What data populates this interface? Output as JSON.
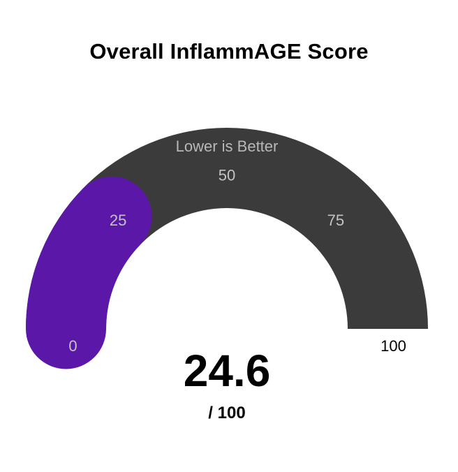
{
  "chart_data": {
    "type": "gauge",
    "title": "Overall InflammAGE Score",
    "subtitle": "Lower is Better",
    "value": 24.6,
    "value_label": "24.6",
    "max_label": "/ 100",
    "range": [
      0,
      100
    ],
    "ticks": [
      {
        "value": 0,
        "label": "0"
      },
      {
        "value": 25,
        "label": "25"
      },
      {
        "value": 50,
        "label": "50"
      },
      {
        "value": 75,
        "label": "75"
      },
      {
        "value": 100,
        "label": "100"
      }
    ]
  },
  "colors": {
    "track": "#3b3b3b",
    "fill": "#5b17a8",
    "tick_on_track": "#c4c4c4",
    "subtitle": "#b8b8b8",
    "text": "#000000"
  }
}
